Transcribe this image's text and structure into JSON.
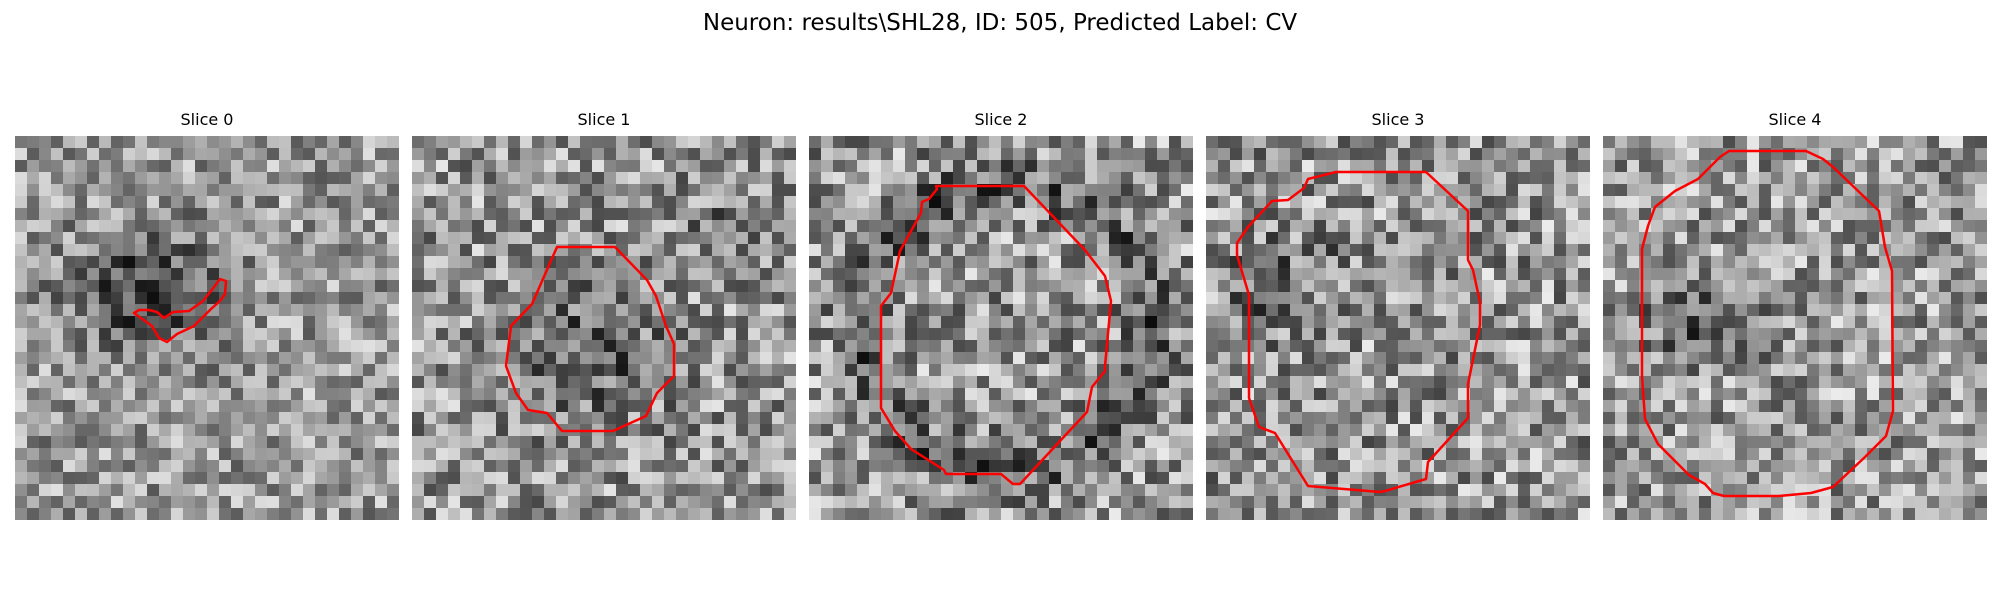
{
  "figure": {
    "title": "Neuron: results\\SHL28, ID: 505, Predicted Label: CV",
    "contour_color": "#ff0000",
    "colormap": "grayscale"
  },
  "panels": [
    {
      "title": "Slice 0",
      "dark_blob": "upper-left",
      "contour": "small elongated outline"
    },
    {
      "title": "Slice 1",
      "dark_blob": "center",
      "contour": "medium octagonal outline"
    },
    {
      "title": "Slice 2",
      "dark_blob": "ring",
      "contour": "large octagonal outline"
    },
    {
      "title": "Slice 3",
      "dark_blob": "left",
      "contour": "large octagonal outline"
    },
    {
      "title": "Slice 4",
      "dark_blob": "left",
      "contour": "large octagonal outline"
    }
  ]
}
